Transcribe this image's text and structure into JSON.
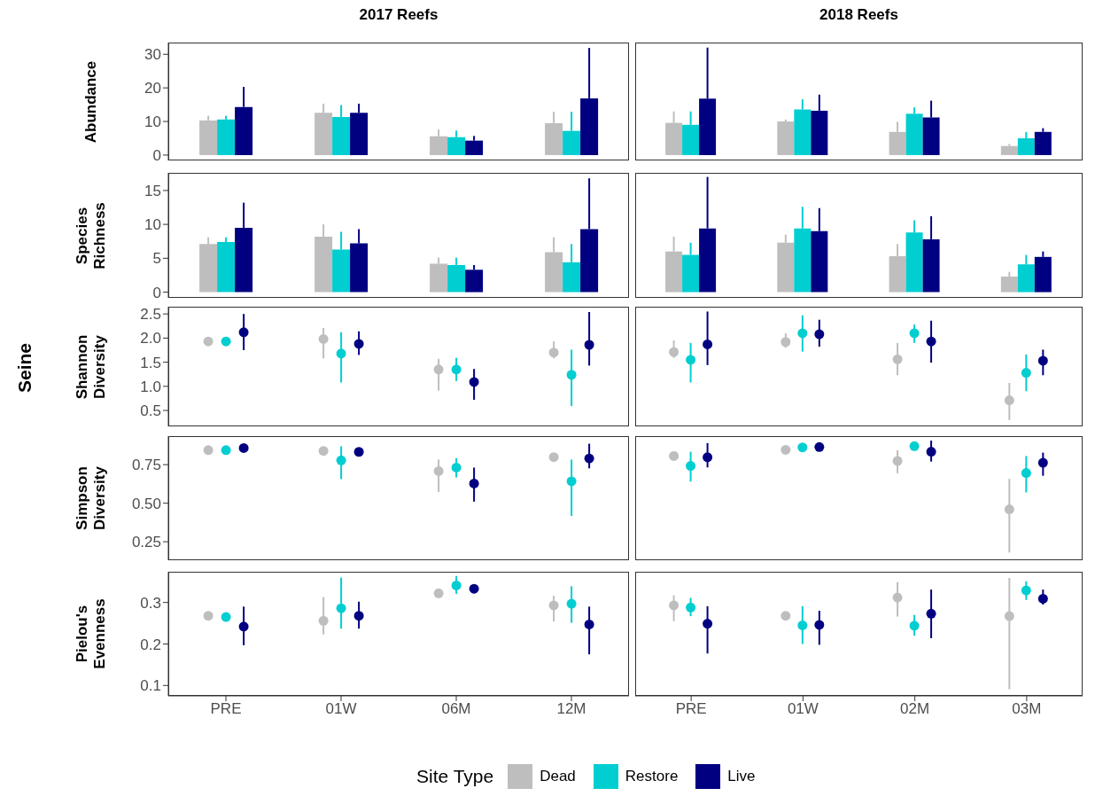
{
  "chart_data": [
    {
      "type": "bar",
      "ylabel": "Abundance",
      "annotations": [
        "2017 Reefs",
        "2018 Reefs",
        "Seine"
      ],
      "categories": [
        null,
        null,
        null,
        null,
        null,
        null,
        null,
        null
      ],
      "tick_labels": "y",
      "ylim": [
        -1.6,
        33.5
      ],
      "yticks": [
        0,
        10,
        20,
        30
      ],
      "series": [
        {
          "color": "#bebebe",
          "values": [
            10.3,
            12.6,
            5.6,
            9.5,
            9.6,
            10.0,
            6.9,
            2.7
          ],
          "errors": [
            [
              10.3,
              11.7
            ],
            [
              12.6,
              15.3
            ],
            [
              5.6,
              7.6
            ],
            [
              9.5,
              12.9
            ],
            [
              9.6,
              13.0
            ],
            [
              10.0,
              10.6
            ],
            [
              6.9,
              9.9
            ],
            [
              2.7,
              3.3
            ]
          ]
        },
        {
          "color": "#00ced1",
          "values": [
            10.6,
            11.3,
            5.3,
            7.2,
            9.0,
            13.6,
            12.3,
            5.0
          ],
          "errors": [
            [
              10.6,
              11.7
            ],
            [
              11.3,
              14.9
            ],
            [
              5.3,
              7.3
            ],
            [
              7.2,
              12.9
            ],
            [
              9.0,
              13.0
            ],
            [
              13.6,
              16.6
            ],
            [
              12.3,
              14.2
            ],
            [
              5.0,
              6.9
            ]
          ]
        },
        {
          "color": "#000080",
          "values": [
            14.3,
            12.6,
            4.3,
            16.9,
            16.8,
            13.2,
            11.2,
            6.9
          ],
          "errors": [
            [
              14.3,
              20.3
            ],
            [
              12.6,
              15.3
            ],
            [
              4.3,
              5.7
            ],
            [
              16.9,
              31.9
            ],
            [
              16.8,
              32.0
            ],
            [
              13.2,
              18.0
            ],
            [
              11.2,
              16.2
            ],
            [
              6.9,
              8.0
            ]
          ]
        }
      ]
    },
    {
      "type": "bar",
      "ylabel": "Species Richness",
      "categories": [
        null,
        null,
        null,
        null,
        null,
        null,
        null,
        null
      ],
      "tick_labels": "y",
      "ylim": [
        -0.84,
        17.6
      ],
      "yticks": [
        0,
        5,
        10,
        15
      ],
      "series": [
        {
          "color": "#bebebe",
          "values": [
            7.1,
            8.2,
            4.2,
            5.9,
            6.0,
            7.3,
            5.3,
            2.3
          ],
          "errors": [
            [
              7.1,
              8.1
            ],
            [
              8.2,
              10.0
            ],
            [
              4.2,
              5.1
            ],
            [
              5.9,
              8.1
            ],
            [
              6.0,
              8.2
            ],
            [
              7.3,
              8.5
            ],
            [
              5.3,
              7.1
            ],
            [
              2.3,
              3.0
            ]
          ]
        },
        {
          "color": "#00ced1",
          "values": [
            7.4,
            6.3,
            4.0,
            4.4,
            5.5,
            9.4,
            8.8,
            4.1
          ],
          "errors": [
            [
              7.4,
              8.1
            ],
            [
              6.3,
              8.9
            ],
            [
              4.0,
              5.1
            ],
            [
              4.4,
              7.1
            ],
            [
              5.5,
              7.3
            ],
            [
              9.4,
              12.6
            ],
            [
              8.8,
              10.6
            ],
            [
              4.1,
              5.5
            ]
          ]
        },
        {
          "color": "#000080",
          "values": [
            9.5,
            7.2,
            3.3,
            9.3,
            9.4,
            9.0,
            7.8,
            5.2
          ],
          "errors": [
            [
              9.5,
              13.2
            ],
            [
              7.2,
              9.3
            ],
            [
              3.3,
              4.0
            ],
            [
              9.3,
              16.8
            ],
            [
              9.4,
              17.0
            ],
            [
              9.0,
              12.4
            ],
            [
              7.8,
              11.2
            ],
            [
              5.2,
              6.0
            ]
          ]
        }
      ]
    },
    {
      "type": "scatter",
      "marker": "circle",
      "ylabel": "Shannon Diversity",
      "categories": [
        null,
        null,
        null,
        null,
        null,
        null,
        null,
        null
      ],
      "tick_labels": "y",
      "ylim": [
        0.17,
        2.65
      ],
      "yticks": [
        0.5,
        {
          "value": 1,
          "label": "1.0"
        },
        1.5,
        {
          "value": 2,
          "label": "2.0"
        },
        2.5
      ],
      "series": [
        {
          "color": "#bebebe",
          "values": [
            1.93,
            1.98,
            1.35,
            1.7,
            1.71,
            1.92,
            1.56,
            0.71
          ],
          "errors": [
            null,
            [
              1.58,
              2.21
            ],
            [
              0.91,
              1.57
            ],
            [
              1.58,
              1.93
            ],
            [
              1.59,
              1.95
            ],
            [
              1.8,
              2.1
            ],
            [
              1.23,
              1.9
            ],
            [
              0.3,
              1.07
            ]
          ]
        },
        {
          "color": "#00ced1",
          "values": [
            1.93,
            1.68,
            1.35,
            1.24,
            1.55,
            2.1,
            2.1,
            1.28
          ],
          "errors": [
            null,
            [
              1.08,
              2.12
            ],
            [
              1.11,
              1.59
            ],
            [
              0.59,
              1.76
            ],
            [
              1.08,
              1.9
            ],
            [
              1.72,
              2.47
            ],
            [
              1.9,
              2.28
            ],
            [
              0.9,
              1.66
            ]
          ]
        },
        {
          "color": "#000080",
          "values": [
            2.12,
            1.88,
            1.09,
            1.86,
            1.87,
            2.08,
            1.93,
            1.53
          ],
          "errors": [
            [
              1.75,
              2.5
            ],
            [
              1.65,
              2.14
            ],
            [
              0.72,
              1.36
            ],
            [
              1.43,
              2.54
            ],
            [
              1.44,
              2.55
            ],
            [
              1.82,
              2.38
            ],
            [
              1.49,
              2.36
            ],
            [
              1.23,
              1.76
            ]
          ]
        }
      ]
    },
    {
      "type": "scatter",
      "marker": "circle",
      "ylabel": "Simpson Diversity",
      "categories": [
        null,
        null,
        null,
        null,
        null,
        null,
        null,
        null
      ],
      "tick_labels": "y",
      "ylim": [
        0.13,
        0.935
      ],
      "yticks": [
        0.25,
        {
          "value": 0.5,
          "label": "0.50"
        },
        0.75
      ],
      "series": [
        {
          "color": "#bebebe",
          "values": [
            0.844,
            0.839,
            0.708,
            0.799,
            0.806,
            0.846,
            0.774,
            0.46
          ],
          "errors": [
            null,
            [
              0.81,
              0.86
            ],
            [
              0.572,
              0.783
            ],
            null,
            null,
            null,
            [
              0.694,
              0.844
            ],
            [
              0.18,
              0.658
            ]
          ]
        },
        {
          "color": "#00ced1",
          "values": [
            0.844,
            0.778,
            0.731,
            0.642,
            0.742,
            0.862,
            0.87,
            0.696
          ],
          "errors": [
            null,
            [
              0.656,
              0.869
            ],
            [
              0.667,
              0.792
            ],
            [
              0.417,
              0.783
            ],
            [
              0.64,
              0.834
            ],
            null,
            null,
            [
              0.57,
              0.806
            ]
          ]
        },
        {
          "color": "#000080",
          "values": [
            0.858,
            0.833,
            0.628,
            0.79,
            0.798,
            0.864,
            0.834,
            0.762
          ],
          "errors": [
            null,
            null,
            [
              0.51,
              0.731
            ],
            [
              0.726,
              0.886
            ],
            [
              0.732,
              0.89
            ],
            null,
            [
              0.77,
              0.906
            ],
            [
              0.678,
              0.828
            ]
          ]
        }
      ]
    },
    {
      "type": "scatter",
      "marker": "circle",
      "ylabel": "Pielou's Evenness",
      "categories": [
        "PRE",
        "01W",
        "06M",
        "12M",
        "PRE",
        "01W",
        "02M",
        "03M"
      ],
      "ylim": [
        0.075,
        0.374
      ],
      "yticks": [
        0.1,
        0.2,
        0.3
      ],
      "legend": "bottom",
      "legend_title": "Site Type",
      "series": [
        {
          "name": "Dead",
          "color": "#bebebe",
          "values": [
            0.268,
            0.256,
            0.322,
            0.293,
            0.293,
            0.268,
            0.312,
            0.267
          ],
          "errors": [
            null,
            [
              0.223,
              0.313
            ],
            null,
            [
              0.254,
              0.316
            ],
            [
              0.255,
              0.317
            ],
            null,
            [
              0.266,
              0.349
            ],
            [
              0.091,
              0.359
            ]
          ]
        },
        {
          "name": "Restore",
          "color": "#00ced1",
          "values": [
            0.265,
            0.286,
            0.341,
            0.297,
            0.288,
            0.245,
            0.244,
            0.329
          ],
          "errors": [
            null,
            [
              0.237,
              0.36
            ],
            [
              0.321,
              0.364
            ],
            [
              0.251,
              0.339
            ],
            [
              0.267,
              0.311
            ],
            [
              0.2,
              0.291
            ],
            [
              0.22,
              0.27
            ],
            [
              0.306,
              0.351
            ]
          ]
        },
        {
          "name": "Live",
          "color": "#000080",
          "values": [
            0.242,
            0.268,
            0.333,
            0.247,
            0.249,
            0.246,
            0.273,
            0.309
          ],
          "errors": [
            [
              0.197,
              0.29
            ],
            [
              0.237,
              0.302
            ],
            null,
            [
              0.175,
              0.29
            ],
            [
              0.177,
              0.291
            ],
            [
              0.198,
              0.28
            ],
            [
              0.214,
              0.331
            ],
            [
              0.295,
              0.331
            ]
          ]
        }
      ]
    }
  ]
}
